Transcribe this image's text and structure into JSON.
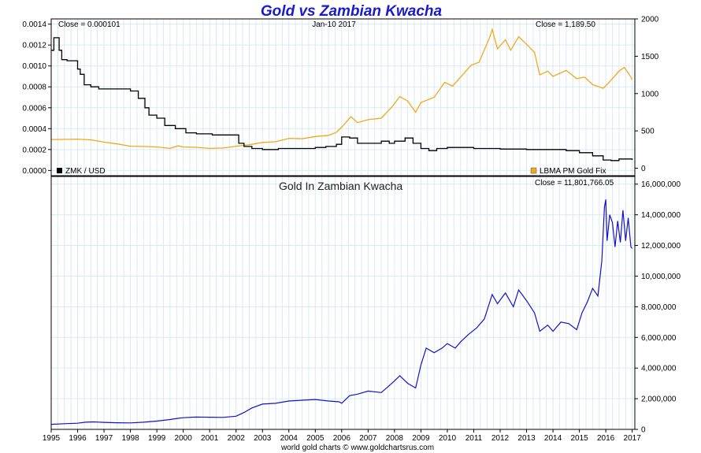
{
  "chart_data": [
    {
      "type": "line",
      "title": "Gold vs Zambian Kwacha",
      "header": {
        "close_left": "Close = 0.000101",
        "date": "Jan-10  2017",
        "close_right": "Close = 1,189.50"
      },
      "x_domain": [
        1995.0,
        2017.1
      ],
      "y_left": {
        "ylim": [
          -5e-05,
          0.00145
        ],
        "ticks": [
          0.0,
          0.0002,
          0.0004,
          0.0006,
          0.0008,
          0.001,
          0.0012,
          0.0014
        ],
        "tick_labels": [
          "0.0000",
          "0.0002",
          "0.0004",
          "0.0006",
          "0.0008",
          "0.0010",
          "0.0012",
          "0.0014"
        ]
      },
      "y_right": {
        "ylim": [
          -100,
          2000
        ],
        "ticks": [
          0,
          500,
          1000,
          1500,
          2000
        ],
        "tick_labels": [
          "0",
          "500",
          "1000",
          "1500",
          "2000"
        ]
      },
      "series": [
        {
          "name": "ZMK / USD",
          "axis": "left",
          "color": "#000000",
          "step": true,
          "points": [
            [
              1995.0,
              0.00115
            ],
            [
              1995.1,
              0.00127
            ],
            [
              1995.3,
              0.00115
            ],
            [
              1995.4,
              0.00106
            ],
            [
              1995.6,
              0.00105
            ],
            [
              1995.9,
              0.00105
            ],
            [
              1996.0,
              0.00097
            ],
            [
              1996.1,
              0.00092
            ],
            [
              1996.25,
              0.00082
            ],
            [
              1996.5,
              0.0008
            ],
            [
              1996.8,
              0.00078
            ],
            [
              1997.5,
              0.00078
            ],
            [
              1998.0,
              0.00076
            ],
            [
              1998.3,
              0.00069
            ],
            [
              1998.55,
              0.0006
            ],
            [
              1998.7,
              0.00053
            ],
            [
              1999.0,
              0.0005
            ],
            [
              1999.3,
              0.00043
            ],
            [
              1999.7,
              0.0004
            ],
            [
              2000.0,
              0.0004
            ],
            [
              2000.1,
              0.00036
            ],
            [
              2000.5,
              0.00035
            ],
            [
              2001.1,
              0.00034
            ],
            [
              2002.0,
              0.00034
            ],
            [
              2002.1,
              0.00026
            ],
            [
              2002.3,
              0.00023
            ],
            [
              2002.6,
              0.00021
            ],
            [
              2003.0,
              0.0002
            ],
            [
              2003.6,
              0.00021
            ],
            [
              2004.0,
              0.00021
            ],
            [
              2005.0,
              0.00022
            ],
            [
              2005.4,
              0.00023
            ],
            [
              2005.8,
              0.00025
            ],
            [
              2006.0,
              0.00032
            ],
            [
              2006.3,
              0.00031
            ],
            [
              2006.6,
              0.00026
            ],
            [
              2007.0,
              0.00026
            ],
            [
              2007.5,
              0.00028
            ],
            [
              2007.8,
              0.00026
            ],
            [
              2008.0,
              0.00028
            ],
            [
              2008.4,
              0.00031
            ],
            [
              2008.7,
              0.00026
            ],
            [
              2009.0,
              0.00021
            ],
            [
              2009.3,
              0.00019
            ],
            [
              2009.6,
              0.00021
            ],
            [
              2010.0,
              0.00022
            ],
            [
              2011.0,
              0.00021
            ],
            [
              2012.0,
              0.000205
            ],
            [
              2013.0,
              0.0002
            ],
            [
              2013.5,
              0.0002
            ],
            [
              2014.5,
              0.00019
            ],
            [
              2015.0,
              0.00017
            ],
            [
              2015.5,
              0.00014
            ],
            [
              2015.9,
              0.0001
            ],
            [
              2016.2,
              9.5e-05
            ],
            [
              2016.5,
              0.00011
            ],
            [
              2017.0,
              0.000101
            ]
          ]
        },
        {
          "name": "LBMA PM Gold Fix",
          "axis": "right",
          "color": "#f0a81b",
          "step": false,
          "points": [
            [
              1995.0,
              384
            ],
            [
              1995.5,
              386
            ],
            [
              1996.0,
              390
            ],
            [
              1996.5,
              380
            ],
            [
              1997.0,
              350
            ],
            [
              1997.5,
              325
            ],
            [
              1998.0,
              295
            ],
            [
              1998.5,
              292
            ],
            [
              1999.0,
              285
            ],
            [
              1999.5,
              265
            ],
            [
              1999.8,
              300
            ],
            [
              2000.0,
              285
            ],
            [
              2000.5,
              280
            ],
            [
              2001.0,
              265
            ],
            [
              2001.5,
              270
            ],
            [
              2002.0,
              295
            ],
            [
              2002.5,
              315
            ],
            [
              2003.0,
              345
            ],
            [
              2003.5,
              355
            ],
            [
              2004.0,
              400
            ],
            [
              2004.5,
              395
            ],
            [
              2005.0,
              425
            ],
            [
              2005.5,
              440
            ],
            [
              2005.8,
              480
            ],
            [
              2006.0,
              550
            ],
            [
              2006.35,
              690
            ],
            [
              2006.6,
              610
            ],
            [
              2007.0,
              650
            ],
            [
              2007.5,
              670
            ],
            [
              2007.9,
              820
            ],
            [
              2008.2,
              960
            ],
            [
              2008.5,
              900
            ],
            [
              2008.8,
              750
            ],
            [
              2009.0,
              880
            ],
            [
              2009.5,
              950
            ],
            [
              2009.9,
              1150
            ],
            [
              2010.2,
              1100
            ],
            [
              2010.5,
              1220
            ],
            [
              2010.9,
              1380
            ],
            [
              2011.2,
              1420
            ],
            [
              2011.6,
              1750
            ],
            [
              2011.7,
              1860
            ],
            [
              2011.9,
              1600
            ],
            [
              2012.2,
              1720
            ],
            [
              2012.4,
              1580
            ],
            [
              2012.7,
              1760
            ],
            [
              2013.0,
              1660
            ],
            [
              2013.3,
              1550
            ],
            [
              2013.5,
              1250
            ],
            [
              2013.8,
              1300
            ],
            [
              2014.0,
              1230
            ],
            [
              2014.5,
              1310
            ],
            [
              2014.9,
              1200
            ],
            [
              2015.2,
              1220
            ],
            [
              2015.5,
              1120
            ],
            [
              2015.9,
              1070
            ],
            [
              2016.1,
              1140
            ],
            [
              2016.5,
              1300
            ],
            [
              2016.7,
              1350
            ],
            [
              2016.9,
              1250
            ],
            [
              2017.0,
              1189.5
            ]
          ]
        }
      ],
      "legend": [
        "ZMK / USD",
        "LBMA PM Gold Fix"
      ]
    },
    {
      "type": "line",
      "title": "Gold In Zambian Kwacha",
      "header": {
        "close_right": "Close = 11,801,766.05"
      },
      "x_domain": [
        1995.0,
        2017.1
      ],
      "x_ticks": [
        1995,
        1996,
        1997,
        1998,
        1999,
        2000,
        2001,
        2002,
        2003,
        2004,
        2005,
        2006,
        2007,
        2008,
        2009,
        2010,
        2011,
        2012,
        2013,
        2014,
        2015,
        2016,
        2017
      ],
      "y_right": {
        "ylim": [
          0,
          16500000
        ],
        "ticks": [
          0,
          2000000,
          4000000,
          6000000,
          8000000,
          10000000,
          12000000,
          14000000,
          16000000
        ],
        "tick_labels": [
          "0",
          "2,000,000",
          "4,000,000",
          "6,000,000",
          "8,000,000",
          "10,000,000",
          "12,000,000",
          "14,000,000",
          "16,000,000"
        ]
      },
      "series": [
        {
          "name": "Gold In Zambian Kwacha",
          "color": "#1111cc",
          "points": [
            [
              1995.0,
              330000
            ],
            [
              1995.5,
              370000
            ],
            [
              1996.0,
              400000
            ],
            [
              1996.3,
              470000
            ],
            [
              1996.6,
              490000
            ],
            [
              1997.0,
              460000
            ],
            [
              1997.5,
              430000
            ],
            [
              1998.0,
              420000
            ],
            [
              1998.5,
              470000
            ],
            [
              1999.0,
              540000
            ],
            [
              1999.5,
              640000
            ],
            [
              1999.8,
              720000
            ],
            [
              2000.0,
              760000
            ],
            [
              2000.5,
              800000
            ],
            [
              2001.0,
              790000
            ],
            [
              2001.5,
              780000
            ],
            [
              2002.0,
              860000
            ],
            [
              2002.3,
              1100000
            ],
            [
              2002.6,
              1400000
            ],
            [
              2003.0,
              1650000
            ],
            [
              2003.5,
              1700000
            ],
            [
              2004.0,
              1850000
            ],
            [
              2004.5,
              1900000
            ],
            [
              2005.0,
              1950000
            ],
            [
              2005.5,
              1850000
            ],
            [
              2005.9,
              1800000
            ],
            [
              2006.0,
              1700000
            ],
            [
              2006.3,
              2200000
            ],
            [
              2006.6,
              2300000
            ],
            [
              2007.0,
              2500000
            ],
            [
              2007.5,
              2400000
            ],
            [
              2007.9,
              3000000
            ],
            [
              2008.2,
              3500000
            ],
            [
              2008.5,
              3000000
            ],
            [
              2008.8,
              2700000
            ],
            [
              2009.0,
              4200000
            ],
            [
              2009.2,
              5300000
            ],
            [
              2009.5,
              5000000
            ],
            [
              2009.8,
              5300000
            ],
            [
              2010.0,
              5600000
            ],
            [
              2010.3,
              5300000
            ],
            [
              2010.5,
              5700000
            ],
            [
              2010.8,
              6200000
            ],
            [
              2011.1,
              6600000
            ],
            [
              2011.4,
              7200000
            ],
            [
              2011.7,
              8800000
            ],
            [
              2011.9,
              8200000
            ],
            [
              2012.2,
              8900000
            ],
            [
              2012.5,
              8000000
            ],
            [
              2012.7,
              9100000
            ],
            [
              2013.0,
              8400000
            ],
            [
              2013.3,
              7600000
            ],
            [
              2013.5,
              6400000
            ],
            [
              2013.8,
              6800000
            ],
            [
              2014.0,
              6400000
            ],
            [
              2014.3,
              7000000
            ],
            [
              2014.6,
              6900000
            ],
            [
              2014.9,
              6500000
            ],
            [
              2015.1,
              7600000
            ],
            [
              2015.3,
              8300000
            ],
            [
              2015.5,
              9200000
            ],
            [
              2015.7,
              8700000
            ],
            [
              2015.85,
              11000000
            ],
            [
              2015.95,
              14500000
            ],
            [
              2016.0,
              15000000
            ],
            [
              2016.05,
              12300000
            ],
            [
              2016.15,
              14000000
            ],
            [
              2016.25,
              13500000
            ],
            [
              2016.35,
              11900000
            ],
            [
              2016.45,
              13600000
            ],
            [
              2016.55,
              12200000
            ],
            [
              2016.65,
              14300000
            ],
            [
              2016.75,
              12300000
            ],
            [
              2016.85,
              13800000
            ],
            [
              2016.95,
              11900000
            ],
            [
              2017.0,
              11801766
            ]
          ]
        }
      ]
    }
  ],
  "footer": "world gold charts © www.goldchartsrus.com"
}
